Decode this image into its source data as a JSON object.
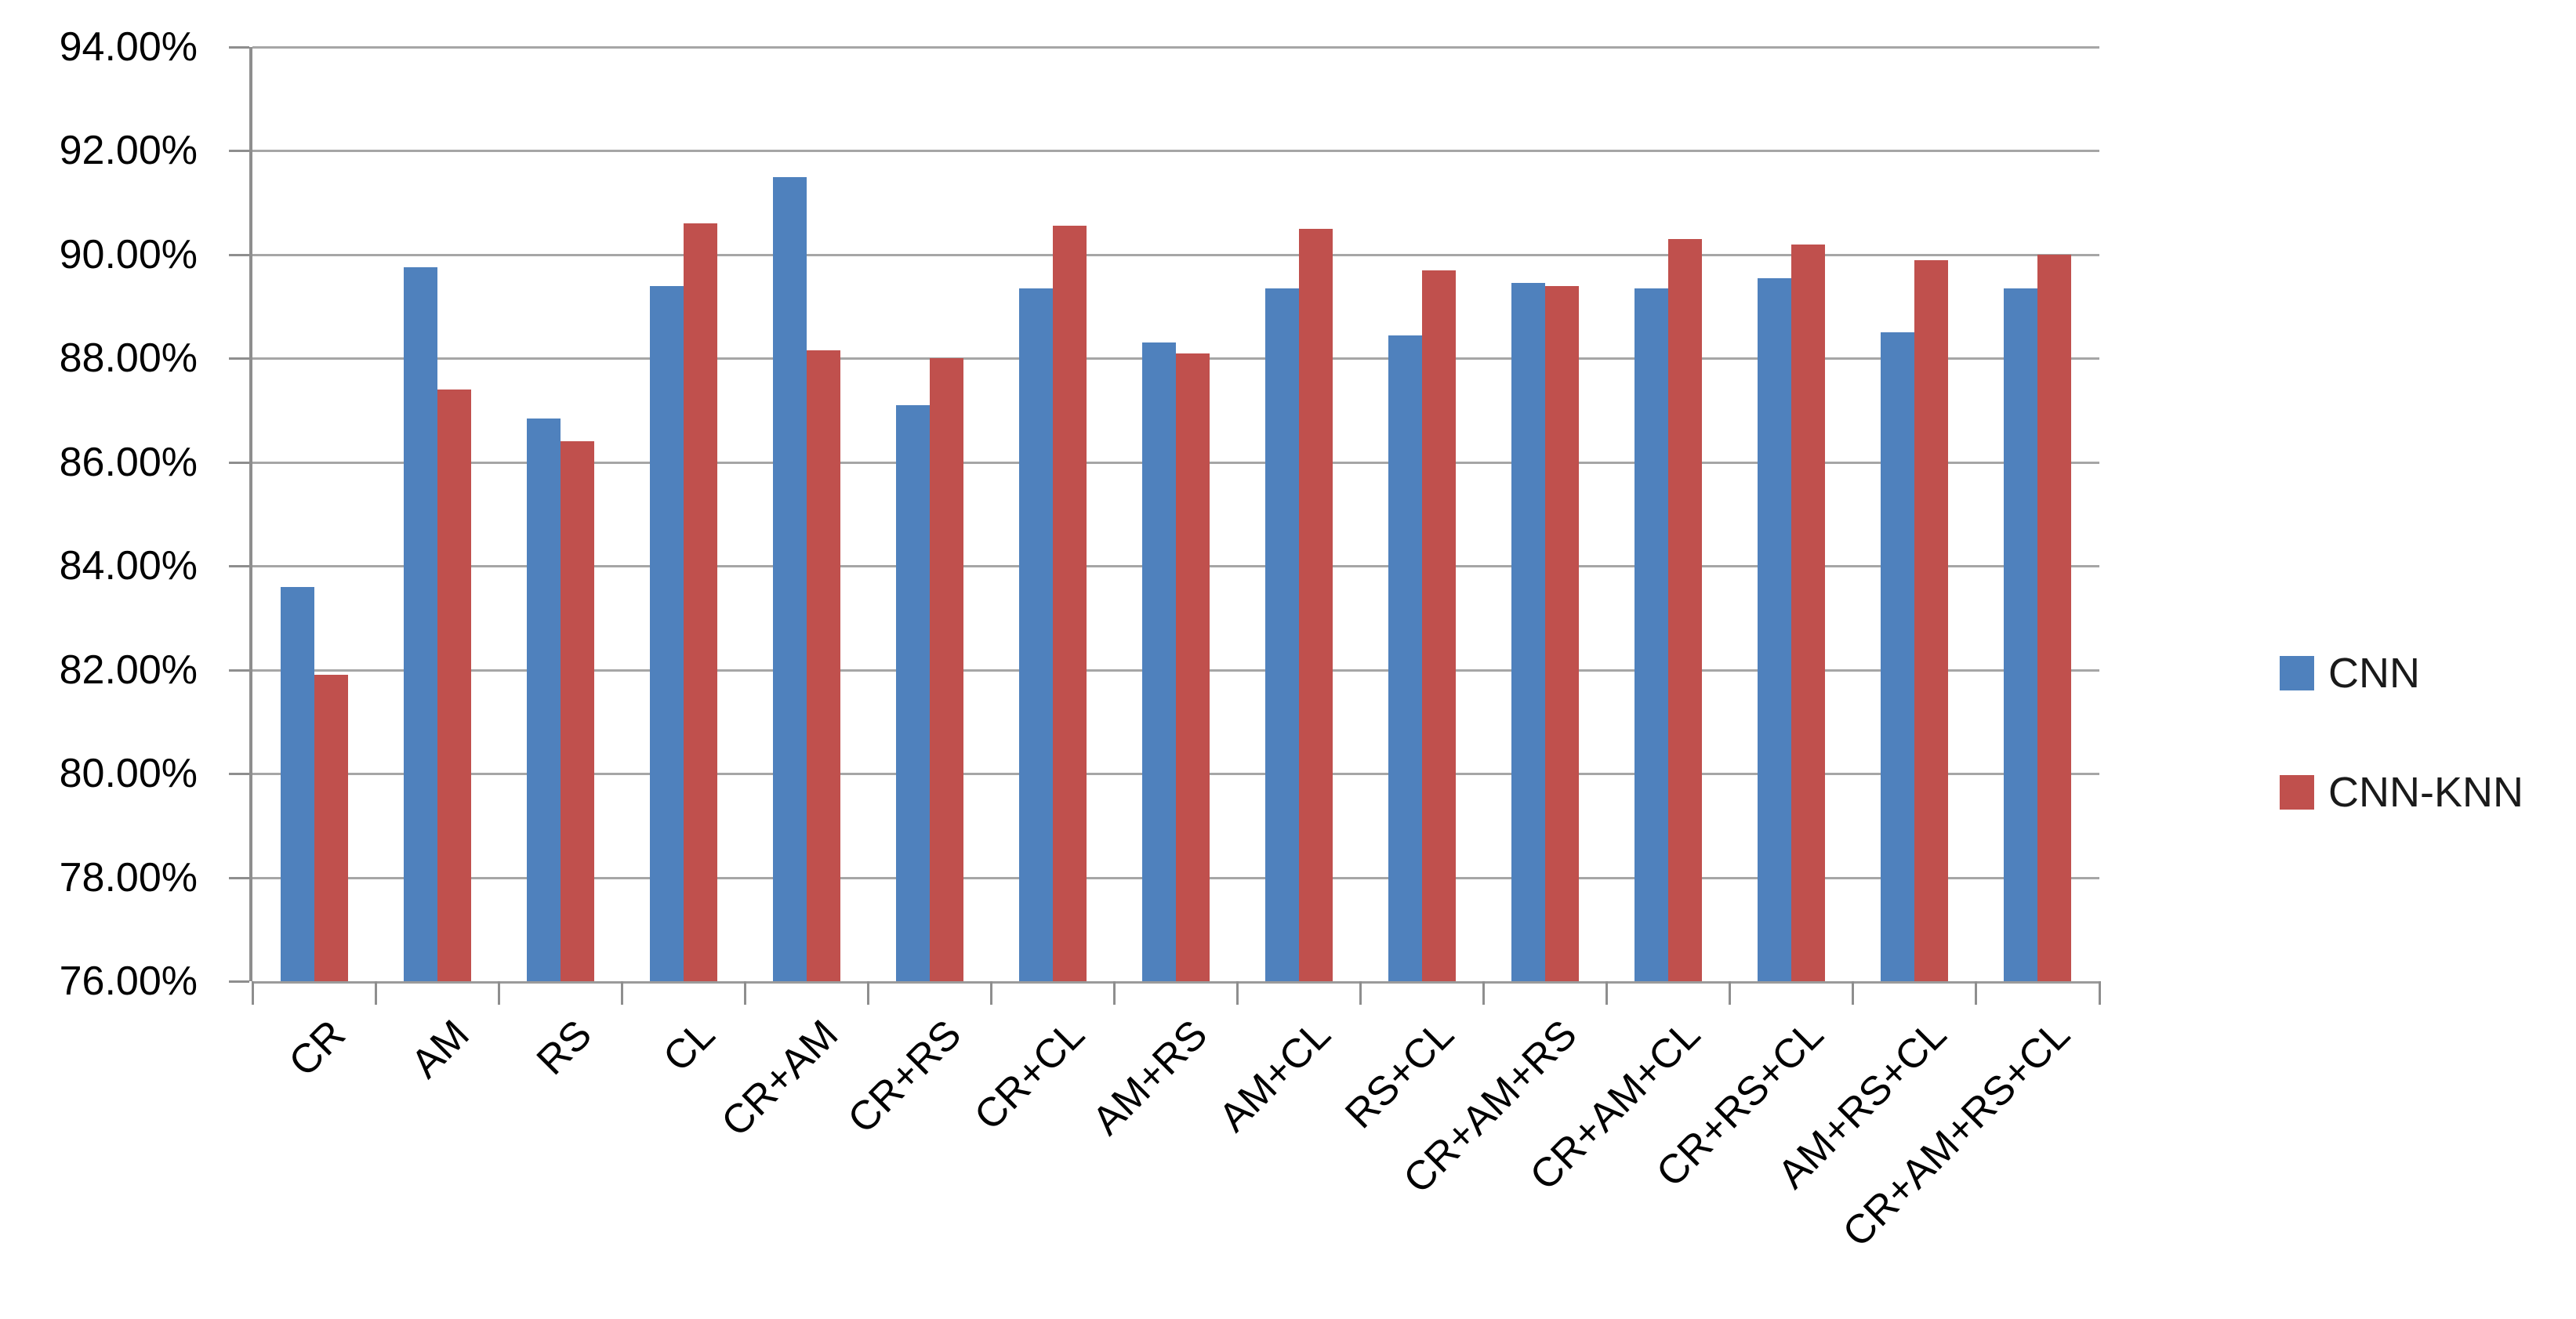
{
  "chart_data": {
    "type": "bar",
    "title": "",
    "xlabel": "",
    "ylabel": "",
    "categories": [
      "CR",
      "AM",
      "RS",
      "CL",
      "CR+AM",
      "CR+RS",
      "CR+CL",
      "AM+RS",
      "AM+CL",
      "RS+CL",
      "CR+AM+RS",
      "CR+AM+CL",
      "CR+RS+CL",
      "AM+RS+CL",
      "CR+AM+RS+CL"
    ],
    "series": [
      {
        "name": "CNN",
        "color": "#4F81BD",
        "values": [
          83.6,
          89.75,
          86.85,
          89.4,
          91.5,
          87.1,
          89.35,
          88.3,
          89.35,
          88.45,
          89.45,
          89.35,
          89.55,
          88.5,
          89.35
        ]
      },
      {
        "name": "CNN-KNN",
        "color": "#C0504D",
        "values": [
          81.9,
          87.4,
          86.4,
          90.6,
          88.15,
          88.0,
          90.55,
          88.1,
          90.5,
          89.7,
          89.4,
          90.3,
          90.2,
          89.9,
          90.0
        ]
      }
    ],
    "ylim": [
      76,
      94
    ],
    "ytick_step": 2,
    "ytick_labels": [
      "94.00%",
      "92.00%",
      "90.00%",
      "88.00%",
      "86.00%",
      "84.00%",
      "82.00%",
      "80.00%",
      "78.00%",
      "76.00%"
    ],
    "grid": true,
    "legend_position": "right",
    "axis_color": "#8e8e8e",
    "gridline_color": "#a6a6a6"
  }
}
